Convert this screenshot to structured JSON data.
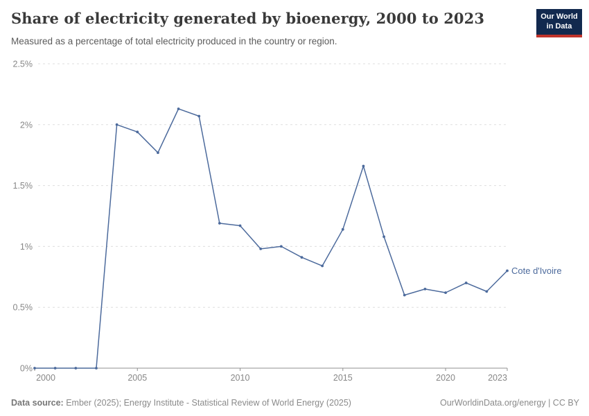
{
  "header": {
    "title": "Share of electricity generated by bioenergy, 2000 to 2023",
    "subtitle": "Measured as a percentage of total electricity produced in the country or region."
  },
  "logo": {
    "line1": "Our World",
    "line2": "in Data"
  },
  "footer": {
    "source_label": "Data source:",
    "source_text": " Ember (2025); Energy Institute - Statistical Review of World Energy (2025)",
    "right_text": "OurWorldinData.org/energy | CC BY"
  },
  "colors": {
    "line": "#4c6a9c",
    "grid": "#dedede",
    "axis": "#8f8f8f",
    "tick_text": "#878787",
    "logo_bg": "#12294e",
    "logo_stripe": "#c0332b"
  },
  "chart_data": {
    "type": "line",
    "title": "Share of electricity generated by bioenergy, 2000 to 2023",
    "xlabel": "",
    "ylabel": "",
    "ylim": [
      0,
      2.5
    ],
    "grid": "horizontal-dashed",
    "legend_position": "end-of-line-label",
    "x": [
      2000,
      2001,
      2002,
      2003,
      2004,
      2005,
      2006,
      2007,
      2008,
      2009,
      2010,
      2011,
      2012,
      2013,
      2014,
      2015,
      2016,
      2017,
      2018,
      2019,
      2020,
      2021,
      2022,
      2023
    ],
    "series": [
      {
        "name": "Cote d'Ivoire",
        "values": [
          0,
          0,
          0,
          0,
          2.0,
          1.94,
          1.77,
          2.13,
          2.07,
          1.19,
          1.17,
          0.98,
          1.0,
          0.91,
          0.84,
          1.14,
          1.66,
          1.08,
          0.6,
          0.65,
          0.62,
          0.7,
          0.63,
          0.8
        ]
      }
    ],
    "end_label": "Cote d'Ivoire",
    "yticks": [
      {
        "value": 0,
        "label": "0%"
      },
      {
        "value": 0.5,
        "label": "0.5%"
      },
      {
        "value": 1,
        "label": "1%"
      },
      {
        "value": 1.5,
        "label": "1.5%"
      },
      {
        "value": 2,
        "label": "2%"
      },
      {
        "value": 2.5,
        "label": "2.5%"
      }
    ],
    "xticks": [
      {
        "value": 2000,
        "label": "2000"
      },
      {
        "value": 2005,
        "label": "2005"
      },
      {
        "value": 2010,
        "label": "2010"
      },
      {
        "value": 2015,
        "label": "2015"
      },
      {
        "value": 2020,
        "label": "2020"
      },
      {
        "value": 2023,
        "label": "2023"
      }
    ]
  }
}
